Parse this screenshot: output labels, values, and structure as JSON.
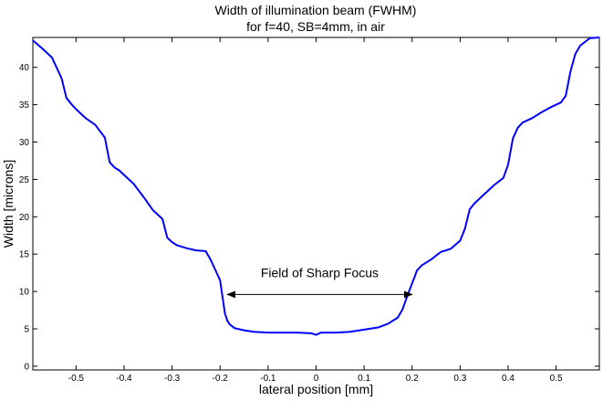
{
  "chart_data": {
    "type": "line",
    "title": "Width of illumination beam (FWHM)",
    "subtitle": "for f=40, SB=4mm, in air",
    "xlabel": "lateral position [mm]",
    "ylabel": "Width [microns]",
    "xlim": [
      -0.59,
      0.59
    ],
    "ylim": [
      -0.5,
      44
    ],
    "xticks": [
      "-0.5",
      "-0.4",
      "-0.3",
      "-0.2",
      "-0.1",
      "0",
      "0.1",
      "0.2",
      "0.3",
      "0.4",
      "0.5"
    ],
    "xtick_values": [
      -0.5,
      -0.4,
      -0.3,
      -0.2,
      -0.1,
      0,
      0.1,
      0.2,
      0.3,
      0.4,
      0.5
    ],
    "yticks": [
      "0",
      "5",
      "10",
      "15",
      "20",
      "25",
      "30",
      "35",
      "40"
    ],
    "ytick_values": [
      0,
      5,
      10,
      15,
      20,
      25,
      30,
      35,
      40
    ],
    "grid": false,
    "legend": "none",
    "series_color": "#0000ff",
    "series": [
      {
        "x": [
          -0.59,
          -0.57,
          -0.55,
          -0.53,
          -0.52,
          -0.51,
          -0.5,
          -0.48,
          -0.46,
          -0.44,
          -0.43,
          -0.42,
          -0.41,
          -0.4,
          -0.38,
          -0.36,
          -0.34,
          -0.32,
          -0.31,
          -0.3,
          -0.29,
          -0.27,
          -0.25,
          -0.23,
          -0.22,
          -0.21,
          -0.2,
          -0.19,
          -0.185,
          -0.18,
          -0.17,
          -0.15,
          -0.13,
          -0.1,
          -0.07,
          -0.04,
          -0.01,
          0.0,
          0.01,
          0.04,
          0.07,
          0.1,
          0.13,
          0.15,
          0.17,
          0.18,
          0.19,
          0.2,
          0.205,
          0.21,
          0.22,
          0.24,
          0.26,
          0.28,
          0.3,
          0.31,
          0.32,
          0.33,
          0.35,
          0.37,
          0.39,
          0.4,
          0.41,
          0.42,
          0.43,
          0.45,
          0.47,
          0.49,
          0.51,
          0.52,
          0.53,
          0.54,
          0.55,
          0.57,
          0.59
        ],
        "y": [
          43.6,
          42.5,
          41.3,
          38.5,
          35.9,
          35.1,
          34.4,
          33.2,
          32.3,
          30.6,
          27.3,
          26.6,
          26.2,
          25.6,
          24.4,
          22.7,
          20.9,
          19.7,
          17.2,
          16.6,
          16.2,
          15.8,
          15.5,
          15.4,
          14.3,
          12.9,
          11.5,
          7.1,
          6.1,
          5.6,
          5.1,
          4.8,
          4.6,
          4.5,
          4.5,
          4.5,
          4.4,
          4.2,
          4.5,
          4.5,
          4.6,
          4.9,
          5.2,
          5.7,
          6.5,
          7.6,
          9.4,
          11.1,
          11.9,
          12.8,
          13.5,
          14.3,
          15.3,
          15.7,
          16.8,
          18.4,
          21.0,
          21.8,
          23.0,
          24.2,
          25.2,
          27.0,
          30.5,
          31.9,
          32.6,
          33.2,
          34.0,
          34.7,
          35.3,
          36.2,
          39.5,
          41.8,
          42.9,
          43.9,
          44.0
        ]
      }
    ],
    "annotation": {
      "text": "Field of Sharp Focus",
      "x_start": -0.185,
      "x_end": 0.2,
      "y": 9.6,
      "text_y": 12.5
    }
  }
}
